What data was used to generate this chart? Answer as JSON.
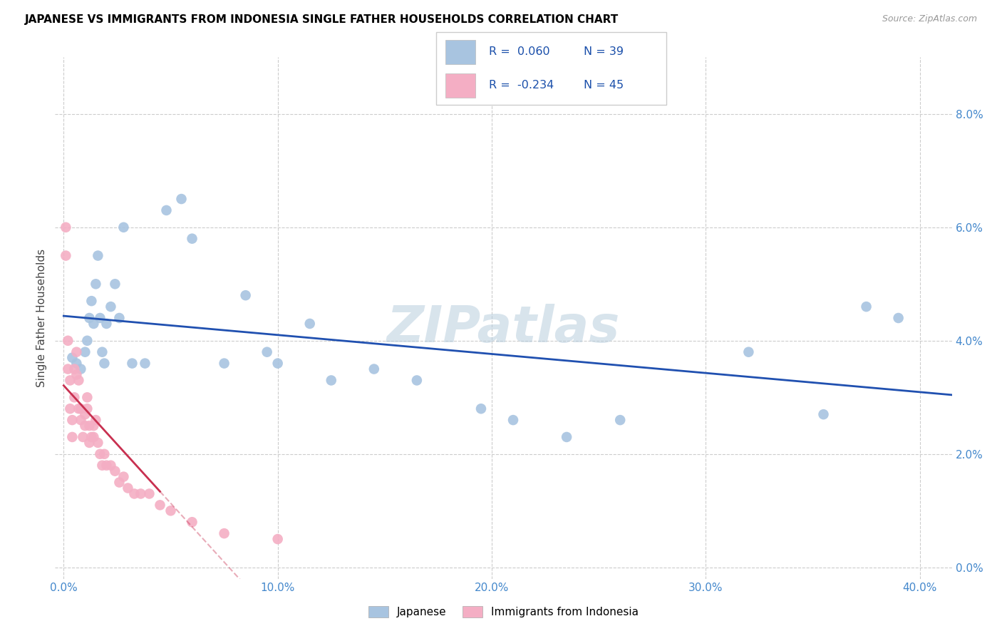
{
  "title": "JAPANESE VS IMMIGRANTS FROM INDONESIA SINGLE FATHER HOUSEHOLDS CORRELATION CHART",
  "source": "Source: ZipAtlas.com",
  "xlabel_tick_vals": [
    0.0,
    0.1,
    0.2,
    0.3,
    0.4
  ],
  "ylabel_tick_vals": [
    0.0,
    0.02,
    0.04,
    0.06,
    0.08
  ],
  "xmin": -0.004,
  "xmax": 0.415,
  "ymin": -0.002,
  "ymax": 0.09,
  "legend_label1": "Japanese",
  "legend_label2": "Immigrants from Indonesia",
  "r1": "0.060",
  "n1": "39",
  "r2": "-0.234",
  "n2": "45",
  "blue_scatter_color": "#a8c4e0",
  "pink_scatter_color": "#f4aec4",
  "blue_line_color": "#2050b0",
  "pink_line_color": "#c83050",
  "watermark": "ZIPatlas",
  "japanese_x": [
    0.004,
    0.006,
    0.008,
    0.01,
    0.011,
    0.012,
    0.013,
    0.014,
    0.015,
    0.016,
    0.017,
    0.018,
    0.019,
    0.02,
    0.022,
    0.024,
    0.026,
    0.028,
    0.032,
    0.038,
    0.048,
    0.055,
    0.06,
    0.075,
    0.085,
    0.095,
    0.1,
    0.115,
    0.125,
    0.145,
    0.165,
    0.195,
    0.21,
    0.235,
    0.26,
    0.32,
    0.355,
    0.375,
    0.39
  ],
  "japanese_y": [
    0.037,
    0.036,
    0.035,
    0.038,
    0.04,
    0.044,
    0.047,
    0.043,
    0.05,
    0.055,
    0.044,
    0.038,
    0.036,
    0.043,
    0.046,
    0.05,
    0.044,
    0.06,
    0.036,
    0.036,
    0.063,
    0.065,
    0.058,
    0.036,
    0.048,
    0.038,
    0.036,
    0.043,
    0.033,
    0.035,
    0.033,
    0.028,
    0.026,
    0.023,
    0.026,
    0.038,
    0.027,
    0.046,
    0.044
  ],
  "indonesia_x": [
    0.001,
    0.001,
    0.002,
    0.002,
    0.003,
    0.003,
    0.004,
    0.004,
    0.005,
    0.005,
    0.006,
    0.006,
    0.007,
    0.007,
    0.008,
    0.008,
    0.009,
    0.01,
    0.01,
    0.011,
    0.011,
    0.012,
    0.012,
    0.013,
    0.014,
    0.014,
    0.015,
    0.016,
    0.017,
    0.018,
    0.019,
    0.02,
    0.022,
    0.024,
    0.026,
    0.028,
    0.03,
    0.033,
    0.036,
    0.04,
    0.045,
    0.05,
    0.06,
    0.075,
    0.1
  ],
  "indonesia_y": [
    0.06,
    0.055,
    0.04,
    0.035,
    0.033,
    0.028,
    0.026,
    0.023,
    0.03,
    0.035,
    0.038,
    0.034,
    0.033,
    0.028,
    0.028,
    0.026,
    0.023,
    0.025,
    0.027,
    0.03,
    0.028,
    0.025,
    0.022,
    0.023,
    0.025,
    0.023,
    0.026,
    0.022,
    0.02,
    0.018,
    0.02,
    0.018,
    0.018,
    0.017,
    0.015,
    0.016,
    0.014,
    0.013,
    0.013,
    0.013,
    0.011,
    0.01,
    0.008,
    0.006,
    0.005
  ],
  "indonesia_line_solid_end_x": 0.045,
  "indonesia_line_dash_start_x": 0.045
}
